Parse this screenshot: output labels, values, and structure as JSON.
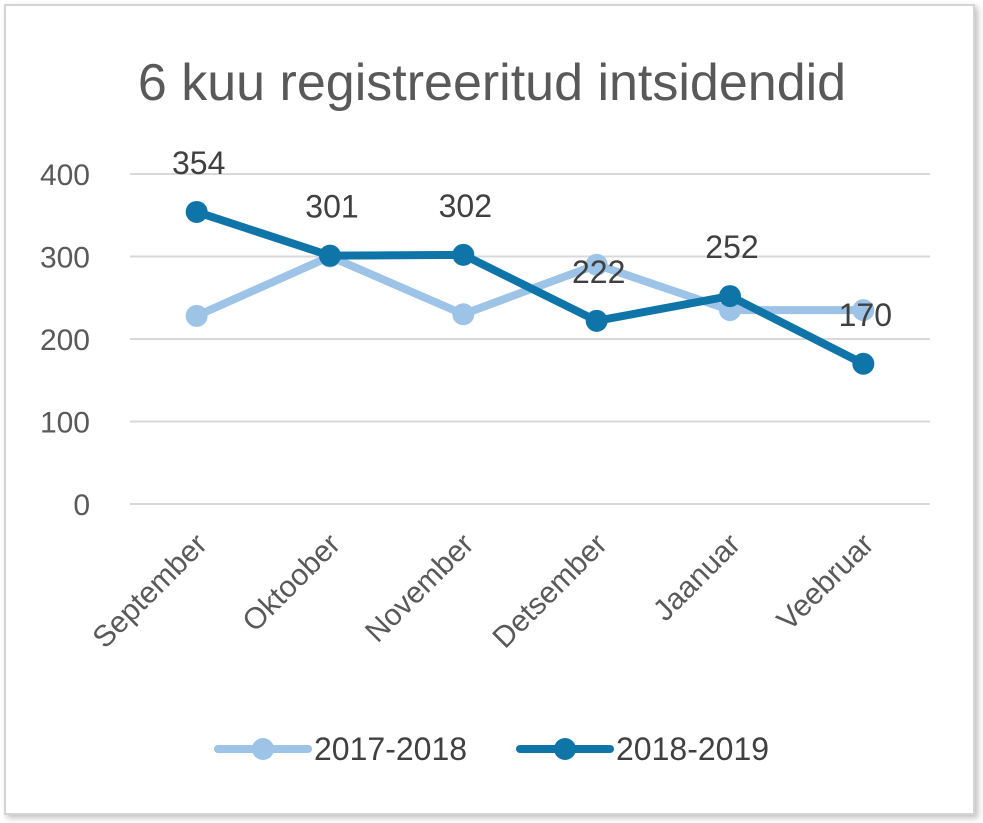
{
  "chart_data": {
    "type": "line",
    "title": "6 kuu registreeritud intsidendid",
    "categories": [
      "September",
      "Oktoober",
      "November",
      "Detsember",
      "Jaanuar",
      "Veebruar"
    ],
    "ylim": [
      0,
      400
    ],
    "yticks": [
      0,
      100,
      200,
      300,
      400
    ],
    "ytick_labels": [
      "0",
      "100",
      "200",
      "300",
      "400"
    ],
    "grid": true,
    "legend_position": "bottom",
    "series": [
      {
        "name": "2017-2018",
        "values": [
          228,
          300,
          230,
          290,
          235,
          235
        ],
        "color": "#9dc3e6",
        "data_labels": false
      },
      {
        "name": "2018-2019",
        "values": [
          354,
          301,
          302,
          222,
          252,
          170
        ],
        "color": "#0f75a8",
        "data_labels": [
          "354",
          "301",
          "302",
          "222",
          "252",
          "170"
        ]
      }
    ]
  }
}
